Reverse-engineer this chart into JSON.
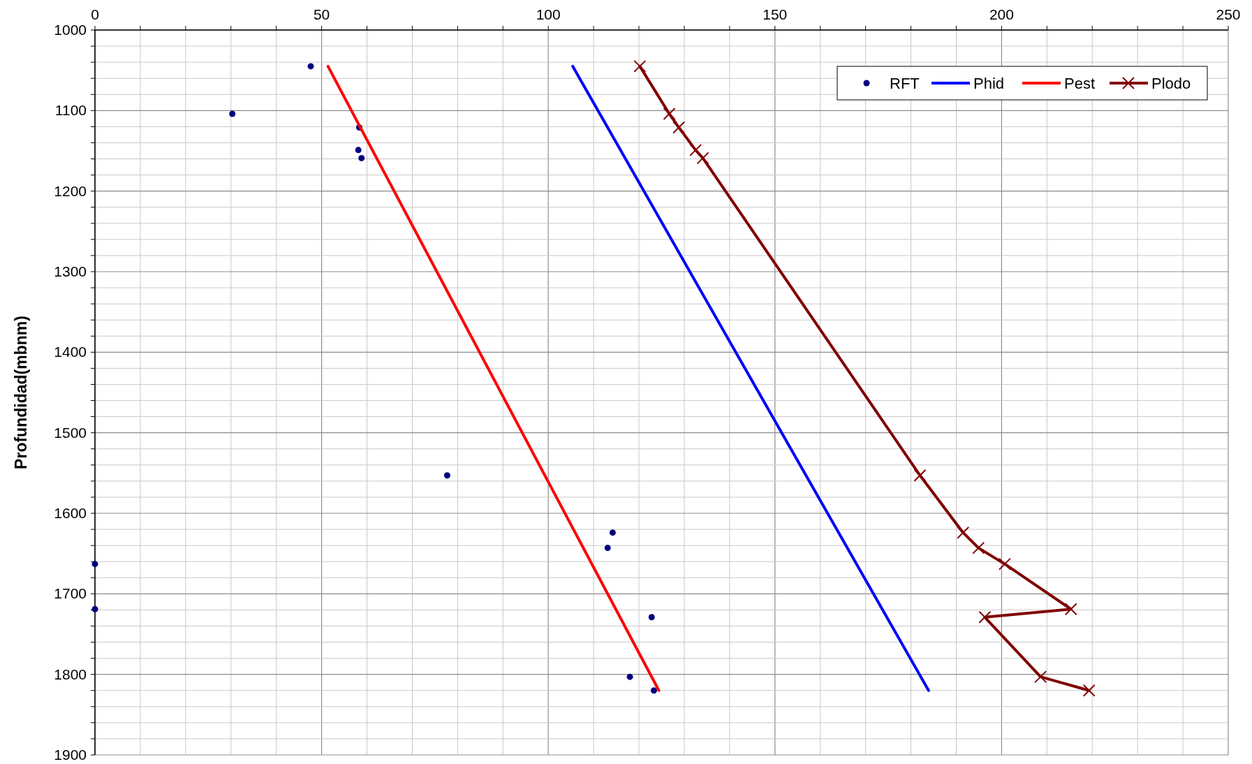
{
  "chart_data": {
    "type": "line",
    "ylabel": "Profundidad(mbnm)",
    "xlim": [
      0,
      250
    ],
    "ylim": [
      1900,
      1000
    ],
    "xticks": [
      0,
      {
        "value": 10,
        "label": null
      },
      {
        "value": 20,
        "label": null
      },
      {
        "value": 30,
        "label": null
      },
      {
        "value": 40,
        "label": null
      },
      50,
      {
        "value": 60,
        "label": null
      },
      {
        "value": 70,
        "label": null
      },
      {
        "value": 80,
        "label": null
      },
      {
        "value": 90,
        "label": null
      },
      100,
      {
        "value": 110,
        "label": null
      },
      {
        "value": 120,
        "label": null
      },
      {
        "value": 130,
        "label": null
      },
      {
        "value": 140,
        "label": null
      },
      150,
      {
        "value": 160,
        "label": null
      },
      {
        "value": 170,
        "label": null
      },
      {
        "value": 180,
        "label": null
      },
      {
        "value": 190,
        "label": null
      },
      200,
      {
        "value": 210,
        "label": null
      },
      {
        "value": 220,
        "label": null
      },
      {
        "value": 230,
        "label": null
      },
      {
        "value": 240,
        "label": null
      },
      250
    ],
    "yticks": [
      1000,
      {
        "value": 1020,
        "label": null
      },
      {
        "value": 1040,
        "label": null
      },
      {
        "value": 1060,
        "label": null
      },
      {
        "value": 1080,
        "label": null
      },
      1100,
      {
        "value": 1120,
        "label": null
      },
      {
        "value": 1140,
        "label": null
      },
      {
        "value": 1160,
        "label": null
      },
      {
        "value": 1180,
        "label": null
      },
      1200,
      {
        "value": 1220,
        "label": null
      },
      {
        "value": 1240,
        "label": null
      },
      {
        "value": 1260,
        "label": null
      },
      {
        "value": 1280,
        "label": null
      },
      1300,
      {
        "value": 1320,
        "label": null
      },
      {
        "value": 1340,
        "label": null
      },
      {
        "value": 1360,
        "label": null
      },
      {
        "value": 1380,
        "label": null
      },
      1400,
      {
        "value": 1420,
        "label": null
      },
      {
        "value": 1440,
        "label": null
      },
      {
        "value": 1460,
        "label": null
      },
      {
        "value": 1480,
        "label": null
      },
      1500,
      {
        "value": 1520,
        "label": null
      },
      {
        "value": 1540,
        "label": null
      },
      {
        "value": 1560,
        "label": null
      },
      {
        "value": 1580,
        "label": null
      },
      1600,
      {
        "value": 1620,
        "label": null
      },
      {
        "value": 1640,
        "label": null
      },
      {
        "value": 1660,
        "label": null
      },
      {
        "value": 1680,
        "label": null
      },
      1700,
      {
        "value": 1720,
        "label": null
      },
      {
        "value": 1740,
        "label": null
      },
      {
        "value": 1760,
        "label": null
      },
      {
        "value": 1780,
        "label": null
      },
      1800,
      {
        "value": 1820,
        "label": null
      },
      {
        "value": 1840,
        "label": null
      },
      {
        "value": 1860,
        "label": null
      },
      {
        "value": 1880,
        "label": null
      },
      1900
    ],
    "grid": true,
    "legend": "top right",
    "series": [
      {
        "name": "RFT",
        "type": "scatter",
        "marker": "circle",
        "color": "#000080",
        "x": [
          47.6,
          30.3,
          58.3,
          58.1,
          58.8,
          77.7,
          114.2,
          113.1,
          0,
          0,
          122.8,
          118,
          123.3
        ],
        "values": [
          1045,
          1104,
          1121,
          1149,
          1159,
          1553,
          1624,
          1643,
          1663,
          1719,
          1729,
          1803,
          1820
        ]
      },
      {
        "name": "Phid",
        "color": "#0000ff",
        "x": [
          105.4,
          183.9
        ],
        "values": [
          1045,
          1820
        ]
      },
      {
        "name": "Pest",
        "color": "#ff0000",
        "x": [
          51.4,
          124.4
        ],
        "values": [
          1045,
          1820
        ]
      },
      {
        "name": "Plodo",
        "marker": "cross",
        "color": "#800000",
        "x": [
          120.2,
          126.7,
          128.8,
          132.5,
          134.1,
          182,
          191.5,
          194.9,
          200.7,
          215.3,
          196.3,
          208.6,
          219.3
        ],
        "values": [
          1045,
          1104,
          1121,
          1149,
          1159,
          1553,
          1624,
          1643,
          1663,
          1719,
          1729,
          1803,
          1820
        ]
      }
    ]
  }
}
